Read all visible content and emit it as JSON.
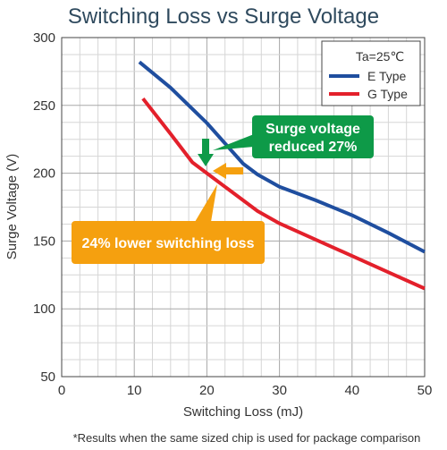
{
  "chart_data": {
    "type": "line",
    "title": "Switching Loss vs Surge Voltage",
    "xlabel": "Switching Loss (mJ)",
    "ylabel": "Surge Voltage (V)",
    "xlim": [
      0,
      50
    ],
    "ylim": [
      50,
      300
    ],
    "x_ticks": [
      0,
      10,
      20,
      30,
      40,
      50
    ],
    "y_ticks": [
      50,
      100,
      150,
      200,
      250,
      300
    ],
    "grid": true,
    "legend_position": "top-right",
    "legend_title": "Ta=25℃",
    "series": [
      {
        "name": "E Type",
        "color": "#1f4e9f",
        "points": [
          [
            10.7,
            282
          ],
          [
            15,
            263
          ],
          [
            20,
            237
          ],
          [
            25,
            207
          ],
          [
            27,
            199
          ],
          [
            30,
            190
          ],
          [
            35,
            180
          ],
          [
            40,
            169
          ],
          [
            45,
            156
          ],
          [
            50,
            142
          ]
        ]
      },
      {
        "name": "G Type",
        "color": "#e3202b",
        "points": [
          [
            11.2,
            255
          ],
          [
            15,
            229
          ],
          [
            18,
            208
          ],
          [
            20,
            200
          ],
          [
            22.5,
            190
          ],
          [
            27,
            172
          ],
          [
            30,
            163
          ],
          [
            35,
            151
          ],
          [
            40,
            139
          ],
          [
            45,
            127
          ],
          [
            50,
            115
          ]
        ]
      }
    ],
    "annotations": [
      {
        "text_lines": [
          "Surge voltage",
          "reduced 27%"
        ],
        "color": "#0e9a48"
      },
      {
        "text_lines": [
          "24% lower switching loss"
        ],
        "color": "#f5a00f"
      }
    ],
    "footnote": "*Results when the same sized chip is used for package comparison"
  }
}
